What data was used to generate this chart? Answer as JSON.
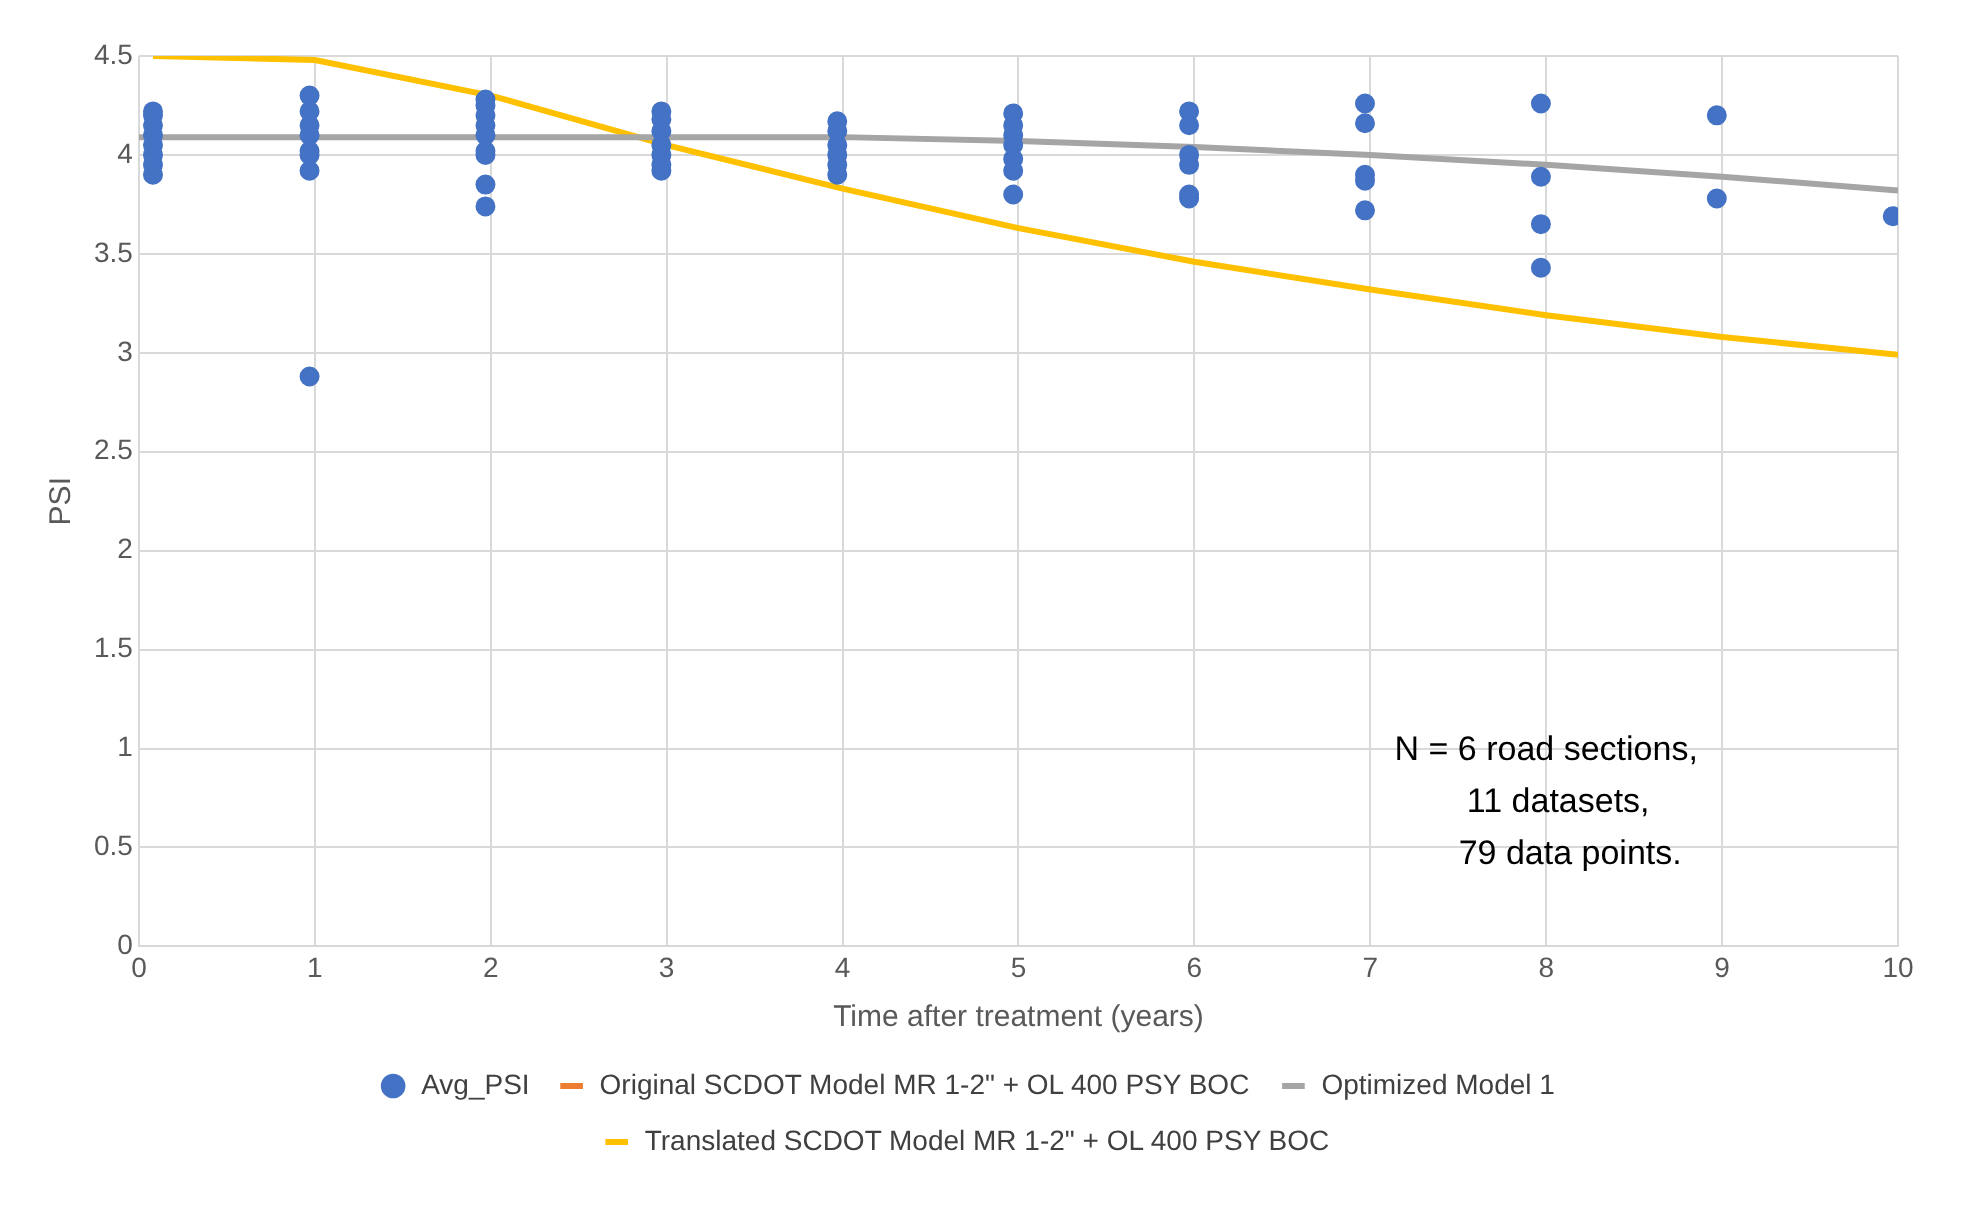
{
  "chart_data": {
    "type": "scatter",
    "xlabel": "Time after treatment (years)",
    "ylabel": "PSI",
    "xlim": [
      0,
      10
    ],
    "xticks": [
      0,
      1,
      2,
      3,
      4,
      5,
      6,
      7,
      8,
      9,
      10
    ],
    "ylim": [
      0,
      4.5
    ],
    "yticks": [
      0,
      0.5,
      1,
      1.5,
      2,
      2.5,
      3,
      3.5,
      4,
      4.5
    ],
    "grid": true,
    "legend": "bottom",
    "marker": "circle",
    "annotations": [
      "N = 6 road sections,\n11 datasets,\n79 data points."
    ],
    "series": [
      {
        "name": "Avg_PSI",
        "color": "#4472c4",
        "x": [
          0.08,
          0.08,
          0.08,
          0.08,
          0.08,
          0.08,
          0.08,
          0.08,
          0.97,
          0.97,
          0.97,
          0.97,
          0.97,
          0.97,
          0.97,
          0.97,
          1.97,
          1.97,
          1.97,
          1.97,
          1.97,
          1.97,
          1.97,
          1.97,
          1.97,
          2.97,
          2.97,
          2.97,
          2.97,
          2.97,
          2.97,
          2.97,
          3.97,
          3.97,
          3.97,
          3.97,
          3.97,
          3.97,
          4.97,
          4.97,
          4.97,
          4.97,
          4.97,
          4.97,
          4.97,
          5.97,
          5.97,
          5.97,
          5.97,
          5.97,
          5.97,
          6.97,
          6.97,
          6.97,
          6.97,
          6.97,
          7.97,
          7.97,
          7.97,
          7.97,
          8.97,
          8.97,
          9.97
        ],
        "values": [
          3.9,
          3.95,
          4.0,
          4.05,
          4.1,
          4.15,
          4.2,
          4.22,
          4.3,
          4.22,
          4.15,
          4.1,
          4.02,
          4.0,
          3.92,
          2.88,
          4.28,
          4.25,
          4.2,
          4.15,
          4.1,
          4.02,
          4.0,
          3.85,
          3.74,
          4.22,
          4.18,
          4.12,
          4.05,
          4.0,
          3.95,
          3.92,
          4.17,
          4.12,
          4.05,
          4.0,
          3.95,
          3.9,
          4.21,
          4.15,
          4.1,
          4.05,
          3.98,
          3.92,
          3.8,
          4.22,
          4.15,
          4.0,
          3.95,
          3.8,
          3.78,
          4.26,
          4.16,
          3.9,
          3.87,
          3.72,
          4.26,
          3.89,
          3.65,
          3.43,
          4.2,
          3.78,
          3.69
        ]
      },
      {
        "name": "Original SCDOT Model MR 1-2\" + OL 400 PSY BOC",
        "type": "line",
        "color": "#ed7d31",
        "marker": "none"
      },
      {
        "name": "Optimized Model 1",
        "type": "line",
        "color": "#a5a5a5",
        "marker": "none",
        "x": [
          0,
          1,
          2,
          3,
          4,
          5,
          6,
          7,
          8,
          9,
          10
        ],
        "values": [
          4.09,
          4.09,
          4.09,
          4.09,
          4.09,
          4.07,
          4.04,
          4.0,
          3.95,
          3.89,
          3.82
        ]
      },
      {
        "name": "Translated SCDOT Model MR 1-2\" + OL 400 PSY BOC",
        "type": "line",
        "color": "#ffc000",
        "marker": "none",
        "x": [
          0.08,
          1,
          2,
          3,
          4,
          5,
          6,
          7,
          8,
          9,
          10
        ],
        "values": [
          4.5,
          4.48,
          4.3,
          4.05,
          3.83,
          3.63,
          3.46,
          3.32,
          3.19,
          3.08,
          2.99
        ]
      }
    ]
  }
}
